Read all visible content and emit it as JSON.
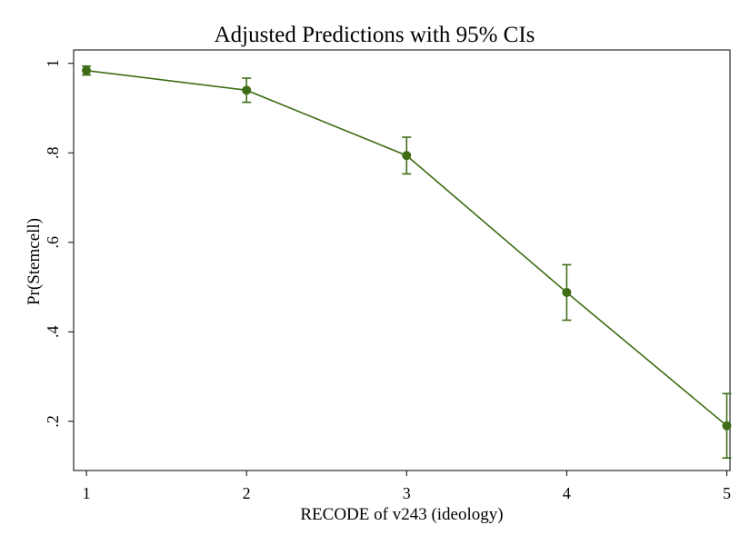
{
  "chart_data": {
    "type": "line",
    "title": "Adjusted Predictions with 95% CIs",
    "xlabel": "RECODE of v243 (ideology)",
    "ylabel": "Pr(Stemcell)",
    "x": [
      1,
      2,
      3,
      4,
      5
    ],
    "x_tick_labels": [
      "1",
      "2",
      "3",
      "4",
      "5"
    ],
    "y_ticks": [
      0.2,
      0.4,
      0.6,
      0.8,
      1
    ],
    "y_tick_labels": [
      ".2",
      ".4",
      ".6",
      ".8",
      "1"
    ],
    "xlim": [
      0.92,
      5.02
    ],
    "ylim": [
      0.09,
      1.03
    ],
    "grid": false,
    "series": [
      {
        "values": [
          0.984,
          0.94,
          0.794,
          0.488,
          0.19
        ],
        "ci_lower": [
          0.974,
          0.913,
          0.753,
          0.426,
          0.118
        ],
        "ci_upper": [
          0.994,
          0.967,
          0.835,
          0.55,
          0.262
        ],
        "color": "#3f6d15"
      }
    ]
  }
}
